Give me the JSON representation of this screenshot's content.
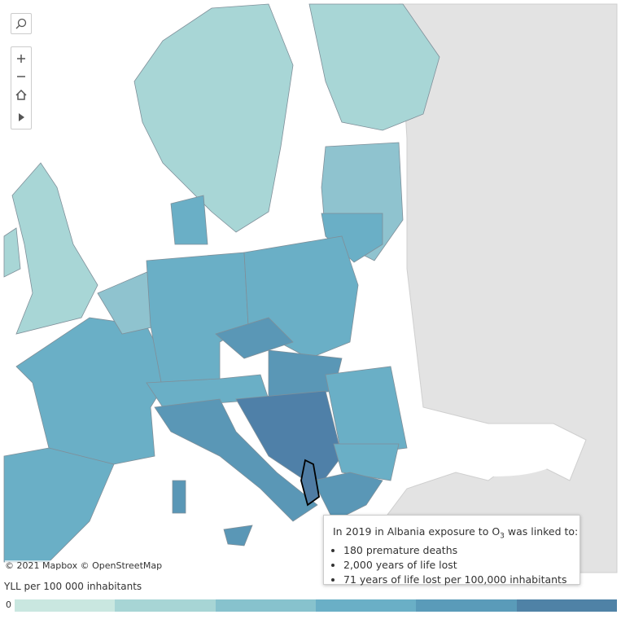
{
  "map": {
    "attribution": "© 2021 Mapbox © OpenStreetMap"
  },
  "tooltip": {
    "heading_before": "In 2019 in Albania  exposure to O",
    "heading_subscript": "3",
    "heading_after": " was linked to:",
    "items": [
      "180 premature deaths",
      "2,000 years of life lost",
      "71 years of life lost per 100,000 inhabitants"
    ]
  },
  "legend": {
    "title": "YLL per 100 000 inhabitants",
    "min_label": "0"
  }
}
